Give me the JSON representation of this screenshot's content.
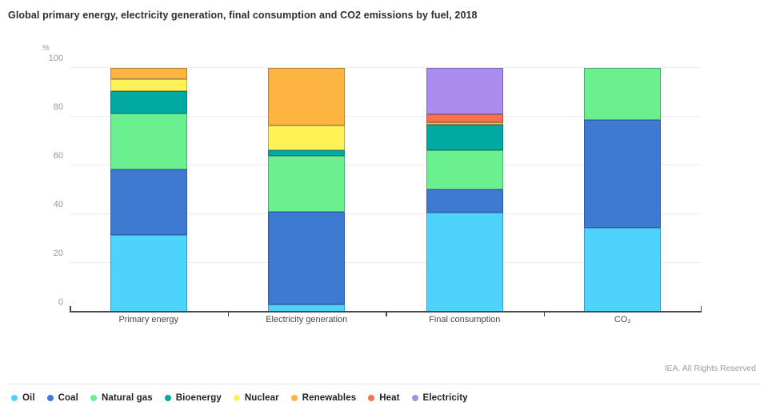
{
  "title": "Global primary energy, electricity generation, final consumption and CO2 emissions by fuel, 2018",
  "y_axis": {
    "unit": "%",
    "ticks": [
      0,
      20,
      40,
      60,
      80,
      100
    ]
  },
  "footer": {
    "credit": "IEA. All Rights Reserved"
  },
  "chart_data": {
    "type": "bar",
    "stacked": true,
    "title": "Global primary energy, electricity generation, final consumption and CO2 emissions by fuel, 2018",
    "xlabel": "",
    "ylabel": "%",
    "ylim": [
      0,
      100
    ],
    "grid": true,
    "legend_position": "bottom",
    "categories": [
      "Primary energy",
      "Electricity generation",
      "Final consumption",
      "CO₂"
    ],
    "series": [
      {
        "name": "Oil",
        "color": "#4ED3FD",
        "values": [
          31.6,
          2.9,
          40.7,
          34.4
        ]
      },
      {
        "name": "Coal",
        "color": "#3E79D2",
        "values": [
          26.9,
          38.0,
          9.6,
          44.3
        ]
      },
      {
        "name": "Natural gas",
        "color": "#6BF08F",
        "values": [
          22.8,
          23.0,
          16.0,
          21.3
        ]
      },
      {
        "name": "Bioenergy",
        "color": "#00A9A2",
        "values": [
          9.3,
          2.4,
          10.4,
          0
        ]
      },
      {
        "name": "Nuclear",
        "color": "#FEF257",
        "values": [
          4.9,
          10.1,
          0,
          0
        ]
      },
      {
        "name": "Renewables",
        "color": "#FDB440",
        "values": [
          4.5,
          23.6,
          1.1,
          0
        ]
      },
      {
        "name": "Heat",
        "color": "#F97250",
        "values": [
          0,
          0,
          3.1,
          0
        ]
      },
      {
        "name": "Electricity",
        "color": "#AA8CEF",
        "values": [
          0,
          0,
          19.1,
          0
        ]
      }
    ]
  }
}
